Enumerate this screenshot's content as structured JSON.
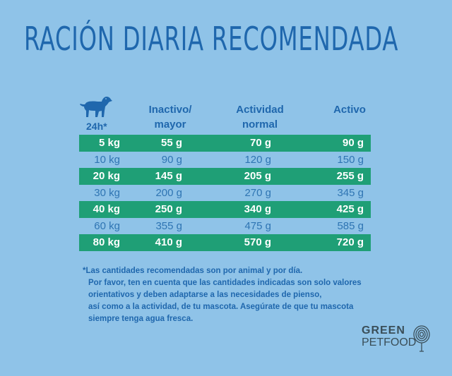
{
  "title": "Ración diaria recomendada",
  "header": {
    "hours": "24h*",
    "col1_line1": "Inactivo/",
    "col1_line2": "mayor",
    "col2_line1": "Actividad",
    "col2_line2": "normal",
    "col3": "Activo"
  },
  "rows": [
    {
      "weight": "5 kg",
      "inactive": "55 g",
      "normal": "70 g",
      "active": "90 g"
    },
    {
      "weight": "10 kg",
      "inactive": "90 g",
      "normal": "120 g",
      "active": "150 g"
    },
    {
      "weight": "20 kg",
      "inactive": "145 g",
      "normal": "205 g",
      "active": "255 g"
    },
    {
      "weight": "30 kg",
      "inactive": "200 g",
      "normal": "270 g",
      "active": "345 g"
    },
    {
      "weight": "40 kg",
      "inactive": "250 g",
      "normal": "340 g",
      "active": "425 g"
    },
    {
      "weight": "60 kg",
      "inactive": "355 g",
      "normal": "475 g",
      "active": "585 g"
    },
    {
      "weight": "80 kg",
      "inactive": "410 g",
      "normal": "570 g",
      "active": "720 g"
    }
  ],
  "notes": {
    "line1": "*Las cantidades recomendadas son por animal y por día.",
    "line2": "Por favor, ten en cuenta que las cantidades indicadas son solo valores",
    "line3": "orientativos y deben adaptarse a las necesidades de pienso,",
    "line4": "así como a la actividad, de tu mascota. Asegúrate de que tu mascota",
    "line5": "siempre tenga agua fresca."
  },
  "logo": {
    "line1": "GREEN",
    "line2": "PETFOOD"
  },
  "colors": {
    "background": "#8fc3e8",
    "accent_blue": "#1f67ad",
    "band_green": "#1f9f76"
  },
  "icons": {
    "dog": "dog-icon",
    "tree": "tree-icon"
  }
}
